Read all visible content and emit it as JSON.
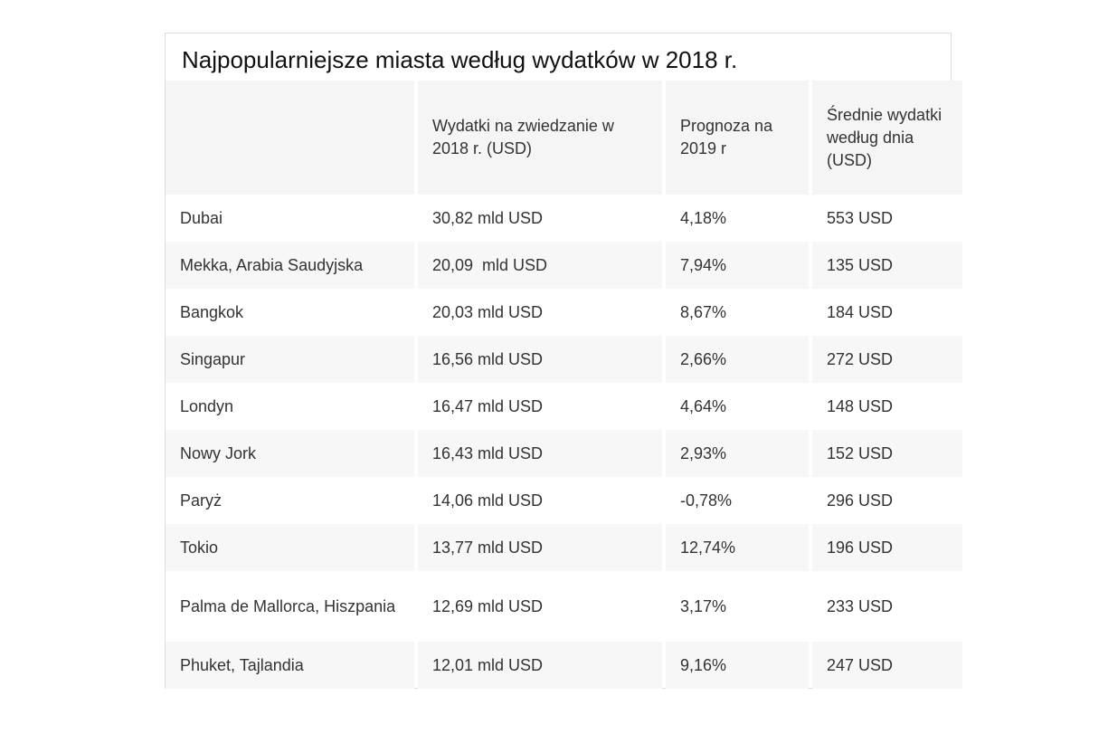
{
  "title": "Najpopularniejsze miasta według wydatków w 2018 r.",
  "table": {
    "headers": [
      "",
      "Wydatki na zwiedzanie w 2018 r. (USD)",
      "Prognoza na 2019 r",
      "Średnie wydatki według dnia (USD)"
    ],
    "rows": [
      {
        "city": "Dubai",
        "spend": "30,82 mld USD",
        "forecast": "4,18%",
        "daily": "553 USD"
      },
      {
        "city": "Mekka, Arabia Saudyjska",
        "spend": "20,09  mld USD",
        "forecast": "7,94%",
        "daily": "135 USD"
      },
      {
        "city": "Bangkok",
        "spend": "20,03 mld USD",
        "forecast": "8,67%",
        "daily": "184 USD"
      },
      {
        "city": "Singapur",
        "spend": "16,56 mld USD",
        "forecast": "2,66%",
        "daily": "272 USD"
      },
      {
        "city": "Londyn",
        "spend": "16,47 mld USD",
        "forecast": "4,64%",
        "daily": "148 USD"
      },
      {
        "city": "Nowy Jork",
        "spend": "16,43 mld USD",
        "forecast": "2,93%",
        "daily": "152 USD"
      },
      {
        "city": "Paryż",
        "spend": "14,06 mld USD",
        "forecast": "-0,78%",
        "daily": "296 USD"
      },
      {
        "city": "Tokio",
        "spend": "13,77 mld USD",
        "forecast": "12,74%",
        "daily": "196 USD"
      },
      {
        "city": "Palma de Mallorca, Hiszpania",
        "spend": "12,69 mld USD",
        "forecast": "3,17%",
        "daily": "233 USD"
      },
      {
        "city": "Phuket, Tajlandia",
        "spend": "12,01 mld USD",
        "forecast": "9,16%",
        "daily": "247 USD"
      }
    ]
  }
}
